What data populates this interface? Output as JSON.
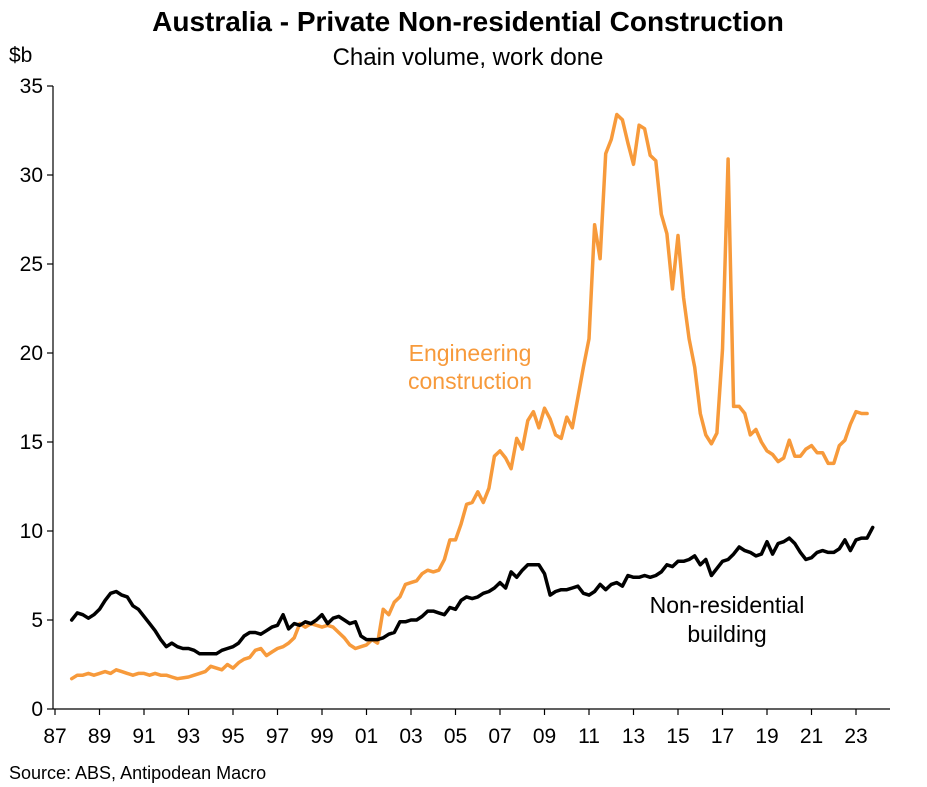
{
  "chart_data": {
    "type": "line",
    "title": "Australia - Private Non-residential Construction",
    "subtitle": "Chain volume, work done",
    "ylabel": "$b",
    "ylim": [
      0,
      35
    ],
    "yticks": [
      0,
      5,
      10,
      15,
      20,
      25,
      30,
      35
    ],
    "xlim": [
      1987,
      2024.5
    ],
    "xticks": [
      {
        "value": 1987,
        "label": "87"
      },
      {
        "value": 1989,
        "label": "89"
      },
      {
        "value": 1991,
        "label": "91"
      },
      {
        "value": 1993,
        "label": "93"
      },
      {
        "value": 1995,
        "label": "95"
      },
      {
        "value": 1997,
        "label": "97"
      },
      {
        "value": 1999,
        "label": "99"
      },
      {
        "value": 2001,
        "label": "01"
      },
      {
        "value": 2003,
        "label": "03"
      },
      {
        "value": 2005,
        "label": "05"
      },
      {
        "value": 2007,
        "label": "07"
      },
      {
        "value": 2009,
        "label": "09"
      },
      {
        "value": 2011,
        "label": "11"
      },
      {
        "value": 2013,
        "label": "13"
      },
      {
        "value": 2015,
        "label": "15"
      },
      {
        "value": 2017,
        "label": "17"
      },
      {
        "value": 2019,
        "label": "19"
      },
      {
        "value": 2021,
        "label": "21"
      },
      {
        "value": 2023,
        "label": "23"
      }
    ],
    "source": "Source: ABS, Antipodean Macro",
    "series": [
      {
        "name": "Engineering construction",
        "label_lines": [
          "Engineering",
          "construction"
        ],
        "color": "#f79a3b",
        "points": [
          [
            1987.75,
            1.7
          ],
          [
            1988,
            1.9
          ],
          [
            1988.25,
            1.9
          ],
          [
            1988.5,
            2.0
          ],
          [
            1988.75,
            1.9
          ],
          [
            1989,
            2.0
          ],
          [
            1989.25,
            2.1
          ],
          [
            1989.5,
            2.0
          ],
          [
            1989.75,
            2.2
          ],
          [
            1990,
            2.1
          ],
          [
            1990.25,
            2.0
          ],
          [
            1990.5,
            1.9
          ],
          [
            1990.75,
            2.0
          ],
          [
            1991,
            2.0
          ],
          [
            1991.25,
            1.9
          ],
          [
            1991.5,
            2.0
          ],
          [
            1991.75,
            1.9
          ],
          [
            1992,
            1.9
          ],
          [
            1992.25,
            1.8
          ],
          [
            1992.5,
            1.7
          ],
          [
            1992.75,
            1.75
          ],
          [
            1993,
            1.8
          ],
          [
            1993.25,
            1.9
          ],
          [
            1993.5,
            2.0
          ],
          [
            1993.75,
            2.1
          ],
          [
            1994,
            2.4
          ],
          [
            1994.25,
            2.3
          ],
          [
            1994.5,
            2.2
          ],
          [
            1994.75,
            2.5
          ],
          [
            1995,
            2.3
          ],
          [
            1995.25,
            2.6
          ],
          [
            1995.5,
            2.8
          ],
          [
            1995.75,
            2.9
          ],
          [
            1996,
            3.3
          ],
          [
            1996.25,
            3.4
          ],
          [
            1996.5,
            3.0
          ],
          [
            1996.75,
            3.2
          ],
          [
            1997,
            3.4
          ],
          [
            1997.25,
            3.5
          ],
          [
            1997.5,
            3.7
          ],
          [
            1997.75,
            4.0
          ],
          [
            1998,
            4.8
          ],
          [
            1998.25,
            4.6
          ],
          [
            1998.5,
            4.8
          ],
          [
            1998.75,
            4.7
          ],
          [
            1999,
            4.6
          ],
          [
            1999.25,
            4.7
          ],
          [
            1999.5,
            4.6
          ],
          [
            1999.75,
            4.3
          ],
          [
            2000,
            4.0
          ],
          [
            2000.25,
            3.6
          ],
          [
            2000.5,
            3.4
          ],
          [
            2000.75,
            3.5
          ],
          [
            2001,
            3.6
          ],
          [
            2001.25,
            3.9
          ],
          [
            2001.5,
            3.7
          ],
          [
            2001.75,
            5.6
          ],
          [
            2002,
            5.3
          ],
          [
            2002.25,
            6.0
          ],
          [
            2002.5,
            6.3
          ],
          [
            2002.75,
            7.0
          ],
          [
            2003,
            7.1
          ],
          [
            2003.25,
            7.2
          ],
          [
            2003.5,
            7.6
          ],
          [
            2003.75,
            7.8
          ],
          [
            2004,
            7.7
          ],
          [
            2004.25,
            7.8
          ],
          [
            2004.5,
            8.4
          ],
          [
            2004.75,
            9.5
          ],
          [
            2005,
            9.5
          ],
          [
            2005.25,
            10.4
          ],
          [
            2005.5,
            11.5
          ],
          [
            2005.75,
            11.6
          ],
          [
            2006,
            12.2
          ],
          [
            2006.25,
            11.6
          ],
          [
            2006.5,
            12.4
          ],
          [
            2006.75,
            14.2
          ],
          [
            2007,
            14.5
          ],
          [
            2007.25,
            14.1
          ],
          [
            2007.5,
            13.5
          ],
          [
            2007.75,
            15.2
          ],
          [
            2008,
            14.6
          ],
          [
            2008.25,
            16.2
          ],
          [
            2008.5,
            16.7
          ],
          [
            2008.75,
            15.8
          ],
          [
            2009,
            16.9
          ],
          [
            2009.25,
            16.3
          ],
          [
            2009.5,
            15.4
          ],
          [
            2009.75,
            15.2
          ],
          [
            2010,
            16.4
          ],
          [
            2010.25,
            15.8
          ],
          [
            2010.5,
            17.5
          ],
          [
            2010.75,
            19.2
          ],
          [
            2011,
            20.8
          ],
          [
            2011.25,
            27.2
          ],
          [
            2011.5,
            25.3
          ],
          [
            2011.75,
            31.2
          ],
          [
            2012,
            32.0
          ],
          [
            2012.25,
            33.4
          ],
          [
            2012.5,
            33.1
          ],
          [
            2012.75,
            31.8
          ],
          [
            2013,
            30.6
          ],
          [
            2013.25,
            32.8
          ],
          [
            2013.5,
            32.6
          ],
          [
            2013.75,
            31.1
          ],
          [
            2014,
            30.8
          ],
          [
            2014.25,
            27.8
          ],
          [
            2014.5,
            26.7
          ],
          [
            2014.75,
            23.6
          ],
          [
            2015,
            26.6
          ],
          [
            2015.25,
            23.1
          ],
          [
            2015.5,
            20.8
          ],
          [
            2015.75,
            19.2
          ],
          [
            2016,
            16.6
          ],
          [
            2016.25,
            15.4
          ],
          [
            2016.5,
            14.9
          ],
          [
            2016.75,
            15.5
          ],
          [
            2017,
            20.2
          ],
          [
            2017.25,
            30.9
          ],
          [
            2017.5,
            17.0
          ],
          [
            2017.75,
            17.0
          ],
          [
            2018,
            16.6
          ],
          [
            2018.25,
            15.4
          ],
          [
            2018.5,
            15.7
          ],
          [
            2018.75,
            15.0
          ],
          [
            2019,
            14.5
          ],
          [
            2019.25,
            14.3
          ],
          [
            2019.5,
            13.9
          ],
          [
            2019.75,
            14.1
          ],
          [
            2020,
            15.1
          ],
          [
            2020.25,
            14.2
          ],
          [
            2020.5,
            14.2
          ],
          [
            2020.75,
            14.6
          ],
          [
            2021,
            14.8
          ],
          [
            2021.25,
            14.4
          ],
          [
            2021.5,
            14.4
          ],
          [
            2021.75,
            13.8
          ],
          [
            2022,
            13.8
          ],
          [
            2022.25,
            14.8
          ],
          [
            2022.5,
            15.1
          ],
          [
            2022.75,
            16.0
          ],
          [
            2023,
            16.7
          ],
          [
            2023.25,
            16.6
          ],
          [
            2023.5,
            16.6
          ]
        ]
      },
      {
        "name": "Non-residential building",
        "label_lines": [
          "Non-residential",
          "building"
        ],
        "color": "#000000",
        "points": [
          [
            1987.75,
            5.0
          ],
          [
            1988,
            5.4
          ],
          [
            1988.25,
            5.3
          ],
          [
            1988.5,
            5.1
          ],
          [
            1988.75,
            5.3
          ],
          [
            1989,
            5.6
          ],
          [
            1989.25,
            6.1
          ],
          [
            1989.5,
            6.5
          ],
          [
            1989.75,
            6.6
          ],
          [
            1990,
            6.4
          ],
          [
            1990.25,
            6.3
          ],
          [
            1990.5,
            5.8
          ],
          [
            1990.75,
            5.6
          ],
          [
            1991,
            5.2
          ],
          [
            1991.25,
            4.8
          ],
          [
            1991.5,
            4.4
          ],
          [
            1991.75,
            3.9
          ],
          [
            1992,
            3.5
          ],
          [
            1992.25,
            3.7
          ],
          [
            1992.5,
            3.5
          ],
          [
            1992.75,
            3.4
          ],
          [
            1993,
            3.4
          ],
          [
            1993.25,
            3.3
          ],
          [
            1993.5,
            3.1
          ],
          [
            1993.75,
            3.1
          ],
          [
            1994,
            3.1
          ],
          [
            1994.25,
            3.1
          ],
          [
            1994.5,
            3.3
          ],
          [
            1994.75,
            3.4
          ],
          [
            1995,
            3.5
          ],
          [
            1995.25,
            3.7
          ],
          [
            1995.5,
            4.1
          ],
          [
            1995.75,
            4.3
          ],
          [
            1996,
            4.3
          ],
          [
            1996.25,
            4.2
          ],
          [
            1996.5,
            4.4
          ],
          [
            1996.75,
            4.6
          ],
          [
            1997,
            4.7
          ],
          [
            1997.25,
            5.3
          ],
          [
            1997.5,
            4.5
          ],
          [
            1997.75,
            4.8
          ],
          [
            1998,
            4.7
          ],
          [
            1998.25,
            4.9
          ],
          [
            1998.5,
            4.8
          ],
          [
            1998.75,
            5.0
          ],
          [
            1999,
            5.3
          ],
          [
            1999.25,
            4.8
          ],
          [
            1999.5,
            5.1
          ],
          [
            1999.75,
            5.2
          ],
          [
            2000,
            5.0
          ],
          [
            2000.25,
            4.8
          ],
          [
            2000.5,
            4.9
          ],
          [
            2000.75,
            4.1
          ],
          [
            2001,
            3.9
          ],
          [
            2001.25,
            3.9
          ],
          [
            2001.5,
            3.9
          ],
          [
            2001.75,
            4.0
          ],
          [
            2002,
            4.2
          ],
          [
            2002.25,
            4.3
          ],
          [
            2002.5,
            4.9
          ],
          [
            2002.75,
            4.9
          ],
          [
            2003,
            5.0
          ],
          [
            2003.25,
            5.0
          ],
          [
            2003.5,
            5.2
          ],
          [
            2003.75,
            5.5
          ],
          [
            2004,
            5.5
          ],
          [
            2004.25,
            5.4
          ],
          [
            2004.5,
            5.3
          ],
          [
            2004.75,
            5.7
          ],
          [
            2005,
            5.6
          ],
          [
            2005.25,
            6.1
          ],
          [
            2005.5,
            6.3
          ],
          [
            2005.75,
            6.2
          ],
          [
            2006,
            6.3
          ],
          [
            2006.25,
            6.5
          ],
          [
            2006.5,
            6.6
          ],
          [
            2006.75,
            6.8
          ],
          [
            2007,
            7.1
          ],
          [
            2007.25,
            6.8
          ],
          [
            2007.5,
            7.7
          ],
          [
            2007.75,
            7.4
          ],
          [
            2008,
            7.8
          ],
          [
            2008.25,
            8.1
          ],
          [
            2008.5,
            8.1
          ],
          [
            2008.75,
            8.1
          ],
          [
            2009,
            7.6
          ],
          [
            2009.25,
            6.4
          ],
          [
            2009.5,
            6.6
          ],
          [
            2009.75,
            6.7
          ],
          [
            2010,
            6.7
          ],
          [
            2010.25,
            6.8
          ],
          [
            2010.5,
            6.9
          ],
          [
            2010.75,
            6.5
          ],
          [
            2011,
            6.4
          ],
          [
            2011.25,
            6.6
          ],
          [
            2011.5,
            7.0
          ],
          [
            2011.75,
            6.7
          ],
          [
            2012,
            7.0
          ],
          [
            2012.25,
            7.1
          ],
          [
            2012.5,
            6.9
          ],
          [
            2012.75,
            7.5
          ],
          [
            2013,
            7.4
          ],
          [
            2013.25,
            7.4
          ],
          [
            2013.5,
            7.5
          ],
          [
            2013.75,
            7.4
          ],
          [
            2014,
            7.5
          ],
          [
            2014.25,
            7.7
          ],
          [
            2014.5,
            8.1
          ],
          [
            2014.75,
            8.0
          ],
          [
            2015,
            8.3
          ],
          [
            2015.25,
            8.3
          ],
          [
            2015.5,
            8.4
          ],
          [
            2015.75,
            8.6
          ],
          [
            2016,
            8.1
          ],
          [
            2016.25,
            8.4
          ],
          [
            2016.5,
            7.5
          ],
          [
            2016.75,
            7.9
          ],
          [
            2017,
            8.3
          ],
          [
            2017.25,
            8.4
          ],
          [
            2017.5,
            8.7
          ],
          [
            2017.75,
            9.1
          ],
          [
            2018,
            8.9
          ],
          [
            2018.25,
            8.8
          ],
          [
            2018.5,
            8.6
          ],
          [
            2018.75,
            8.7
          ],
          [
            2019,
            9.4
          ],
          [
            2019.25,
            8.7
          ],
          [
            2019.5,
            9.3
          ],
          [
            2019.75,
            9.4
          ],
          [
            2020,
            9.6
          ],
          [
            2020.25,
            9.3
          ],
          [
            2020.5,
            8.8
          ],
          [
            2020.75,
            8.4
          ],
          [
            2021,
            8.5
          ],
          [
            2021.25,
            8.8
          ],
          [
            2021.5,
            8.9
          ],
          [
            2021.75,
            8.8
          ],
          [
            2022,
            8.8
          ],
          [
            2022.25,
            9.0
          ],
          [
            2022.5,
            9.5
          ],
          [
            2022.75,
            8.9
          ],
          [
            2023,
            9.5
          ],
          [
            2023.25,
            9.6
          ],
          [
            2023.5,
            9.6
          ],
          [
            2023.75,
            10.2
          ]
        ]
      }
    ]
  }
}
